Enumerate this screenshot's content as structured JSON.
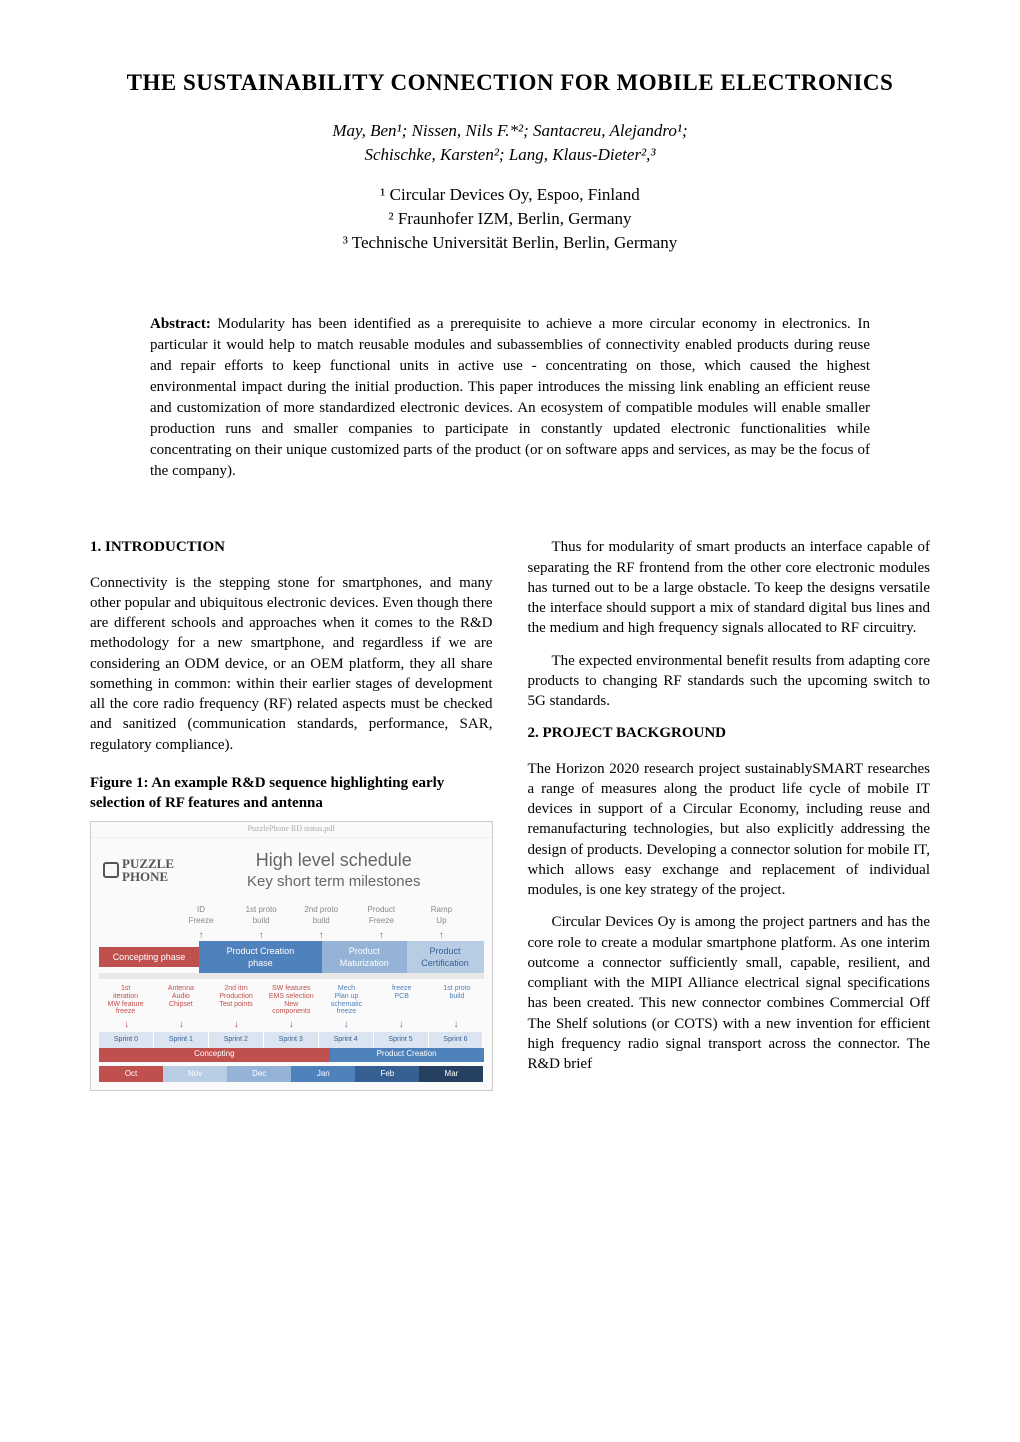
{
  "title": "THE SUSTAINABILITY CONNECTION FOR MOBILE ELECTRONICS",
  "authors_line1": "May, Ben¹; Nissen, Nils F.*²; Santacreu, Alejandro¹;",
  "authors_line2": "Schischke, Karsten²; Lang, Klaus-Dieter²,³",
  "affil1": "¹ Circular Devices Oy, Espoo, Finland",
  "affil2": "² Fraunhofer IZM, Berlin, Germany",
  "affil3": "³ Technische Universität Berlin, Berlin, Germany",
  "abstract_label": "Abstract:",
  "abstract_text": " Modularity has been identified as a prerequisite to achieve a more circular economy in electronics. In particular it would help to match reusable modules and subassemblies of connectivity enabled products during reuse and repair efforts to keep functional units in active use - concentrating on those, which caused the highest environmental impact during the initial production. This paper introduces the missing link enabling an efficient reuse and customization of more standardized electronic devices. An ecosystem of compatible modules will enable smaller production runs and smaller companies to participate in constantly updated electronic functionalities while concentrating on their unique customized parts of the product (or on software apps and services, as may be the focus of the company).",
  "section1_heading": "1.   INTRODUCTION",
  "section1_p1": "Connectivity is the stepping stone for smartphones, and many other popular and ubiquitous electronic devices. Even though there are different schools and approaches when it comes to the R&D methodology for a new smartphone, and regardless if we are considering an ODM device, or an OEM platform, they all share something in common: within their earlier stages of development all the core radio frequency (RF) related aspects must be checked and sanitized (communication standards, performance, SAR, regulatory compliance).",
  "figure1_caption": "Figure 1: An example R&D sequence highlighting early selection of RF features and antenna",
  "col2_p1": "Thus for modularity of smart products an interface capable of separating the RF frontend from the other core electronic modules has turned out to be a large obstacle. To keep the designs versatile the interface should support a mix of standard digital bus lines and the medium and high frequency signals allocated to RF circuitry.",
  "col2_p2": "The expected environmental benefit results from adapting core products to changing RF standards such the upcoming switch to 5G standards.",
  "section2_heading": "2.   PROJECT BACKGROUND",
  "section2_p1": "The Horizon 2020 research project sustainablySMART researches a range of measures along the product life cycle of mobile IT devices in support of a Circular Economy, including reuse and remanufacturing technologies, but also explicitly addressing the design of products. Developing a connector solution for mobile IT, which allows easy exchange and replacement of individual modules, is one key strategy of the project.",
  "section2_p2": "Circular Devices Oy is among the project partners and has the core role to create a modular smartphone platform. As one interim outcome a connector sufficiently small, capable, resilient, and compliant with the MIPI Alliance electrical signal specifications has been created. This new connector combines Commercial Off The Shelf solutions (or COTS) with a new invention for efficient high frequency radio signal transport across the connector. The R&D brief",
  "figure": {
    "topbar": "PuzzlePhone RD status.pdf",
    "logo_text": "PUZZLE\nPHONE",
    "fig_title": "High level schedule",
    "fig_subtitle": "Key short term milestones",
    "milestones": [
      "ID\nFreeze",
      "1st proto\nbuild",
      "2nd proto\nbuild",
      "Product\nFreeze",
      "Ramp\nUp"
    ],
    "phases": {
      "concepting": "Concepting phase",
      "creation": "Product Creation\nphase",
      "maturization": "Product\nMaturization",
      "certification": "Product\nCertification"
    },
    "details_left": [
      "1st\niteration\nMW feature\nfreeze",
      "Antenna\nAudio\nChipset",
      "2nd itrn\nProduction\nTest points",
      "SW features\nEMS selection\nNew\ncomponents"
    ],
    "details_right": [
      "Mech\nPlan up\nschematic\nfreeze",
      "freeze\nPCB",
      "1st proto\nbuild"
    ],
    "sprints": [
      "Sprint 0",
      "Sprint 1",
      "Sprint 2",
      "Sprint 3",
      "Sprint 4",
      "Sprint 5",
      "Sprint 6"
    ],
    "concepting_label": "Concepting",
    "creation_label": "Product Creation",
    "months": [
      "Oct",
      "Nov",
      "Dec",
      "Jan",
      "Feb",
      "Mar"
    ]
  }
}
